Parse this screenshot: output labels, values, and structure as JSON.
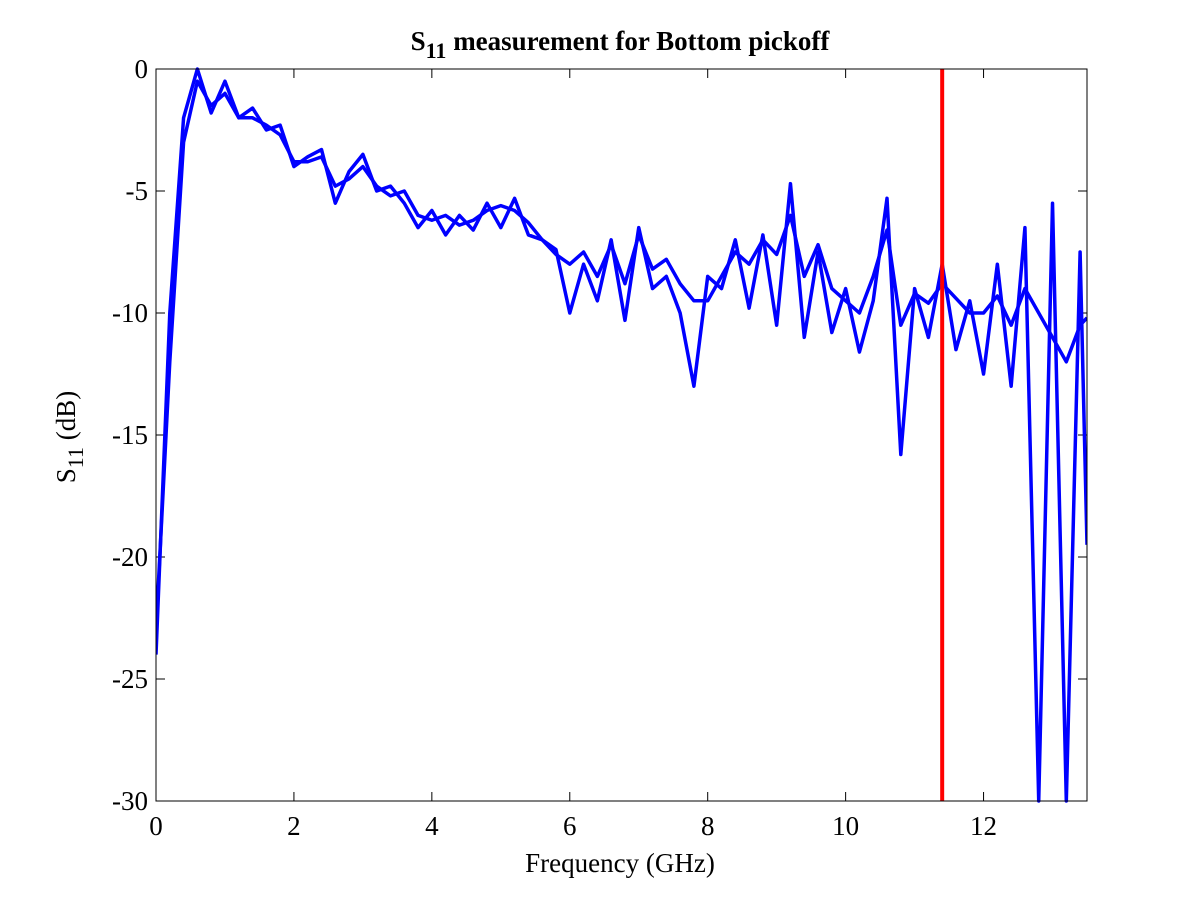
{
  "chart_data": {
    "type": "line",
    "title": [
      "S",
      "11",
      " measurement for Bottom pickoff"
    ],
    "xlabel": "Frequency (GHz)",
    "ylabel": [
      "S",
      "11",
      " (dB)"
    ],
    "x": [
      0,
      0.2,
      0.4,
      0.6,
      0.8,
      1.0,
      1.2,
      1.4,
      1.6,
      1.8,
      2.0,
      2.2,
      2.4,
      2.6,
      2.8,
      3.0,
      3.2,
      3.4,
      3.6,
      3.8,
      4.0,
      4.2,
      4.4,
      4.6,
      4.8,
      5.0,
      5.2,
      5.4,
      5.6,
      5.8,
      6.0,
      6.2,
      6.4,
      6.6,
      6.8,
      7.0,
      7.2,
      7.4,
      7.6,
      7.8,
      8.0,
      8.2,
      8.4,
      8.6,
      8.8,
      9.0,
      9.2,
      9.4,
      9.6,
      9.8,
      10.0,
      10.2,
      10.4,
      10.6,
      10.8,
      11.0,
      11.2,
      11.4,
      11.6,
      11.8,
      12.0,
      12.2,
      12.4,
      12.6,
      12.8,
      13.0,
      13.2,
      13.4,
      13.5
    ],
    "series": [
      {
        "color": "#0000ff",
        "values": [
          -24,
          -10,
          -2,
          0,
          -1.8,
          -0.5,
          -2,
          -1.6,
          -2.5,
          -2.3,
          -4,
          -3.6,
          -3.3,
          -5.5,
          -4.2,
          -3.5,
          -5,
          -4.8,
          -5.5,
          -6.5,
          -5.8,
          -6.8,
          -6,
          -6.6,
          -5.5,
          -6.5,
          -5.3,
          -6.8,
          -7,
          -7.4,
          -10,
          -8,
          -9.5,
          -7,
          -10.3,
          -6.5,
          -9,
          -8.5,
          -10,
          -13,
          -8.5,
          -9,
          -7,
          -9.8,
          -6.8,
          -10.5,
          -4.7,
          -11,
          -7.5,
          -10.8,
          -9,
          -11.6,
          -9.5,
          -5.3,
          -15.8,
          -9,
          -11,
          -8,
          -11.5,
          -9.5,
          -12.5,
          -8,
          -13,
          -6.5,
          -30,
          -5.5,
          -30,
          -7.5,
          -19.5
        ]
      },
      {
        "color": "#0000ff",
        "values": [
          -23,
          -12,
          -3,
          -0.5,
          -1.5,
          -1,
          -2,
          -2,
          -2.3,
          -2.7,
          -3.8,
          -3.8,
          -3.6,
          -4.8,
          -4.5,
          -4,
          -4.8,
          -5.2,
          -5,
          -6,
          -6.2,
          -6,
          -6.4,
          -6.2,
          -5.8,
          -5.6,
          -5.8,
          -6.3,
          -7,
          -7.6,
          -8,
          -7.5,
          -8.5,
          -7.2,
          -8.8,
          -6.8,
          -8.2,
          -7.8,
          -8.8,
          -9.5,
          -9.5,
          -8.5,
          -7.5,
          -8,
          -7,
          -7.6,
          -6,
          -8.5,
          -7.2,
          -9,
          -9.5,
          -10,
          -8.5,
          -6.6,
          -10.5,
          -9.2,
          -9.6,
          -8.8,
          -9.4,
          -10,
          -10,
          -9.3,
          -10.5,
          -9,
          -10,
          -11,
          -12,
          -10.5,
          -10.2
        ]
      }
    ],
    "vlines": [
      {
        "x": 11.4,
        "color": "#ff0000"
      }
    ],
    "xlim": [
      0,
      13.5
    ],
    "xticks": [
      0,
      2,
      4,
      6,
      8,
      10,
      12
    ],
    "ylim": [
      -30,
      0
    ],
    "yticks": [
      -30,
      -25,
      -20,
      -15,
      -10,
      -5,
      0
    ],
    "grid": false
  }
}
